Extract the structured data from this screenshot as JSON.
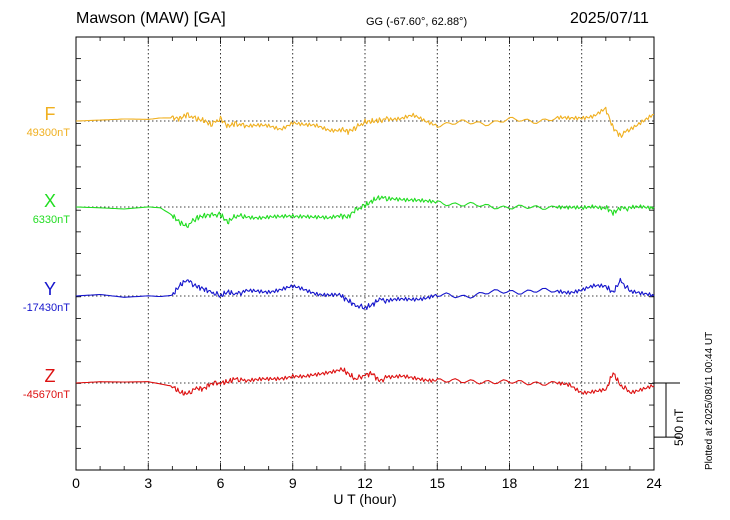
{
  "header": {
    "station": "Mawson (MAW)  [GA]",
    "coords": "GG (-67.60°,  62.88°)",
    "date": "2025/07/11"
  },
  "plotted_note": "Plotted at 2025/08/11 00:44 UT",
  "scale_bar_label": "500 nT",
  "chart_data": {
    "type": "line",
    "xlabel": "U T (hour)",
    "xlim": [
      0,
      24
    ],
    "xticks": [
      "0",
      "3",
      "6",
      "9",
      "12",
      "15",
      "18",
      "21",
      "24"
    ],
    "grid": true,
    "y_unit": "nT",
    "panel_span_nT": 1000,
    "scale_bar_nT": 500,
    "series": [
      {
        "name": "F",
        "baseline_label": "49300nT",
        "baseline": 49300,
        "color": "#f0b020",
        "x": [
          0,
          1,
          2,
          3,
          3.5,
          4,
          4.3,
          4.6,
          5,
          5.3,
          5.6,
          6,
          6.3,
          6.6,
          7,
          7.5,
          8,
          8.5,
          9,
          9.5,
          10,
          10.5,
          11,
          11.3,
          11.6,
          12,
          12.3,
          12.6,
          13,
          13.5,
          14,
          14.5,
          15,
          16,
          17,
          18,
          19,
          20,
          20.5,
          21,
          21.5,
          22,
          22.3,
          22.6,
          23,
          23.5,
          24
        ],
        "y": [
          49300,
          49300,
          49302,
          49305,
          49310,
          49320,
          49345,
          49360,
          49330,
          49310,
          49270,
          49330,
          49270,
          49260,
          49280,
          49260,
          49250,
          49240,
          49300,
          49250,
          49230,
          49210,
          49220,
          49190,
          49250,
          49270,
          49310,
          49320,
          49330,
          49320,
          49340,
          49310,
          49290,
          49290,
          49300,
          49300,
          49300,
          49300,
          49300,
          49330,
          49350,
          49400,
          49250,
          49180,
          49240,
          49320,
          49360
        ]
      },
      {
        "name": "X",
        "baseline_label": "6330nT",
        "baseline": 6330,
        "color": "#22dd22",
        "x": [
          0,
          1,
          2,
          3,
          3.5,
          4,
          4.3,
          4.6,
          5,
          5.3,
          5.6,
          6,
          6.3,
          6.6,
          7,
          7.5,
          8,
          8.5,
          9,
          9.5,
          10,
          10.5,
          11,
          11.3,
          11.6,
          12,
          12.3,
          12.6,
          13,
          13.5,
          14,
          14.5,
          15,
          16,
          17,
          18,
          19,
          20,
          20.5,
          21,
          21.5,
          22,
          22.3,
          22.6,
          23,
          23.5,
          24
        ],
        "y": [
          6330,
          6330,
          6328,
          6325,
          6310,
          6250,
          6180,
          6150,
          6210,
          6240,
          6280,
          6250,
          6200,
          6250,
          6240,
          6230,
          6240,
          6250,
          6260,
          6260,
          6250,
          6240,
          6260,
          6220,
          6300,
          6340,
          6380,
          6410,
          6400,
          6390,
          6380,
          6370,
          6360,
          6350,
          6345,
          6340,
          6340,
          6340,
          6330,
          6320,
          6330,
          6310,
          6270,
          6330,
          6310,
          6320,
          6330
        ]
      },
      {
        "name": "Y",
        "baseline_label": "-17430nT",
        "baseline": -17430,
        "color": "#1515cc",
        "x": [
          0,
          1,
          2,
          3,
          3.5,
          4,
          4.3,
          4.6,
          5,
          5.3,
          5.6,
          6,
          6.3,
          6.6,
          7,
          7.5,
          8,
          8.5,
          9,
          9.5,
          10,
          10.5,
          11,
          11.3,
          11.6,
          12,
          12.3,
          12.6,
          13,
          13.5,
          14,
          14.5,
          15,
          16,
          17,
          18,
          19,
          20,
          20.5,
          21,
          21.5,
          22,
          22.3,
          22.6,
          23,
          23.5,
          24
        ],
        "y": [
          -17430,
          -17430,
          -17428,
          -17425,
          -17420,
          -17400,
          -17340,
          -17300,
          -17340,
          -17370,
          -17400,
          -17420,
          -17410,
          -17420,
          -17410,
          -17400,
          -17390,
          -17380,
          -17370,
          -17390,
          -17400,
          -17410,
          -17430,
          -17460,
          -17510,
          -17520,
          -17500,
          -17480,
          -17470,
          -17460,
          -17440,
          -17430,
          -17430,
          -17440,
          -17420,
          -17400,
          -17390,
          -17380,
          -17370,
          -17360,
          -17340,
          -17330,
          -17390,
          -17310,
          -17370,
          -17420,
          -17430
        ]
      },
      {
        "name": "Z",
        "baseline_label": "-45670nT",
        "baseline": -45670,
        "color": "#dd1111",
        "x": [
          0,
          1,
          2,
          3,
          3.5,
          4,
          4.3,
          4.6,
          5,
          5.3,
          5.6,
          6,
          6.3,
          6.6,
          7,
          7.5,
          8,
          8.5,
          9,
          9.5,
          10,
          10.5,
          11,
          11.3,
          11.6,
          12,
          12.3,
          12.6,
          13,
          13.5,
          14,
          14.5,
          15,
          16,
          17,
          18,
          19,
          20,
          20.5,
          21,
          21.5,
          22,
          22.3,
          22.6,
          23,
          23.5,
          24
        ],
        "y": [
          -45670,
          -45670,
          -45672,
          -45675,
          -45680,
          -45700,
          -45750,
          -45760,
          -45720,
          -45700,
          -45680,
          -45650,
          -45660,
          -45640,
          -45640,
          -45630,
          -45620,
          -45620,
          -45610,
          -45620,
          -45600,
          -45580,
          -45560,
          -45580,
          -45620,
          -45600,
          -45580,
          -45640,
          -45620,
          -45610,
          -45620,
          -45630,
          -45630,
          -45640,
          -45650,
          -45660,
          -45680,
          -45690,
          -45700,
          -45770,
          -45760,
          -45740,
          -45560,
          -45690,
          -45750,
          -45720,
          -45700
        ]
      }
    ]
  }
}
